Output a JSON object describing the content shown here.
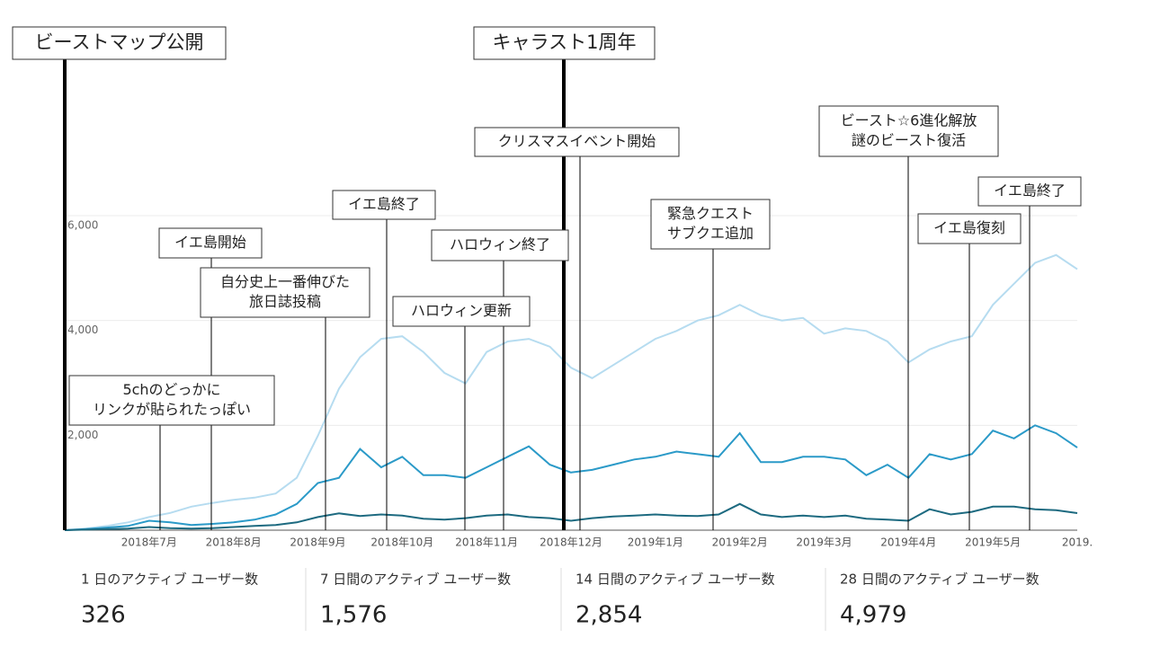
{
  "chart_data": {
    "type": "line",
    "categories": [
      null,
      null,
      null,
      null,
      "2018年7月",
      null,
      null,
      null,
      "2018年8月",
      null,
      null,
      null,
      "2018年9月",
      null,
      null,
      null,
      "2018年10月",
      null,
      null,
      null,
      "2018年11月",
      null,
      null,
      null,
      "2018年12月",
      null,
      null,
      null,
      "2019年1月",
      null,
      null,
      null,
      "2019年2月",
      null,
      null,
      null,
      "2019年3月",
      null,
      null,
      null,
      "2019年4月",
      null,
      null,
      null,
      "2019年5月",
      null,
      null,
      null,
      "2019."
    ],
    "series": [
      {
        "color": "#b6dcf0",
        "values": [
          0,
          30,
          80,
          150,
          250,
          330,
          450,
          520,
          580,
          620,
          700,
          1000,
          1800,
          2700,
          3300,
          3650,
          3700,
          3400,
          3000,
          2800,
          3400,
          3600,
          3650,
          3500,
          3100,
          2900,
          3150,
          3400,
          3650,
          3800,
          4000,
          4100,
          4300,
          4100,
          4000,
          4050,
          3750,
          3850,
          3800,
          3600,
          3200,
          3450,
          3600,
          3700,
          4300,
          4700,
          5100,
          5250,
          4979
        ]
      },
      {
        "color": "#2b9ac8",
        "values": [
          0,
          20,
          50,
          80,
          180,
          150,
          100,
          120,
          150,
          200,
          300,
          500,
          900,
          1000,
          1550,
          1200,
          1400,
          1050,
          1050,
          1000,
          1200,
          1400,
          1600,
          1250,
          1100,
          1150,
          1250,
          1350,
          1400,
          1500,
          1450,
          1400,
          1850,
          1300,
          1300,
          1400,
          1400,
          1350,
          1050,
          1250,
          1000,
          1450,
          1350,
          1450,
          1900,
          1750,
          2000,
          1850,
          1576
        ]
      },
      {
        "color": "#1d6a80",
        "values": [
          0,
          10,
          20,
          30,
          60,
          40,
          30,
          40,
          60,
          80,
          100,
          150,
          250,
          320,
          270,
          300,
          280,
          220,
          200,
          230,
          280,
          300,
          250,
          230,
          180,
          230,
          260,
          280,
          300,
          280,
          270,
          300,
          500,
          300,
          250,
          280,
          250,
          280,
          220,
          200,
          180,
          400,
          300,
          350,
          450,
          450,
          400,
          380,
          326
        ]
      }
    ],
    "ylim": [
      0,
      6000
    ],
    "yticks": [
      {
        "value": 2000,
        "label": "2,000"
      },
      {
        "value": 4000,
        "label": "4,000"
      },
      {
        "value": 6000,
        "label": "6,000"
      }
    ],
    "grid": true,
    "annotations": [
      {
        "text": [
          "ビーストマップ公開"
        ]
      },
      {
        "text": [
          "キャラスト1周年"
        ]
      },
      {
        "text": [
          "クリスマスイベント開始"
        ]
      },
      {
        "text": [
          "ビースト☆6進化解放",
          "謎のビースト復活"
        ]
      },
      {
        "text": [
          "イエ島終了"
        ]
      },
      {
        "text": [
          "緊急クエスト",
          "サブクエ追加"
        ]
      },
      {
        "text": [
          "イエ島復刻"
        ]
      },
      {
        "text": [
          "イエ島終了"
        ]
      },
      {
        "text": [
          "ハロウィン終了"
        ]
      },
      {
        "text": [
          "イエ島開始"
        ]
      },
      {
        "text": [
          "自分史上一番伸びた",
          "旅日誌投稿"
        ]
      },
      {
        "text": [
          "ハロウィン更新"
        ]
      },
      {
        "text": [
          "5chのどっかに",
          "リンクが貼られたっぽい"
        ]
      }
    ],
    "metrics": [
      {
        "title": "1 日のアクティブ ユーザー数",
        "value": 326
      },
      {
        "title": "7 日間のアクティブ ユーザー数",
        "value": 1576,
        "value_label": "1,576"
      },
      {
        "title": "14 日間のアクティブ ユーザー数",
        "value": 2854,
        "value_label": "2,854"
      },
      {
        "title": "28 日間のアクティブ ユーザー数",
        "value": 4979,
        "value_label": "4,979"
      }
    ]
  }
}
